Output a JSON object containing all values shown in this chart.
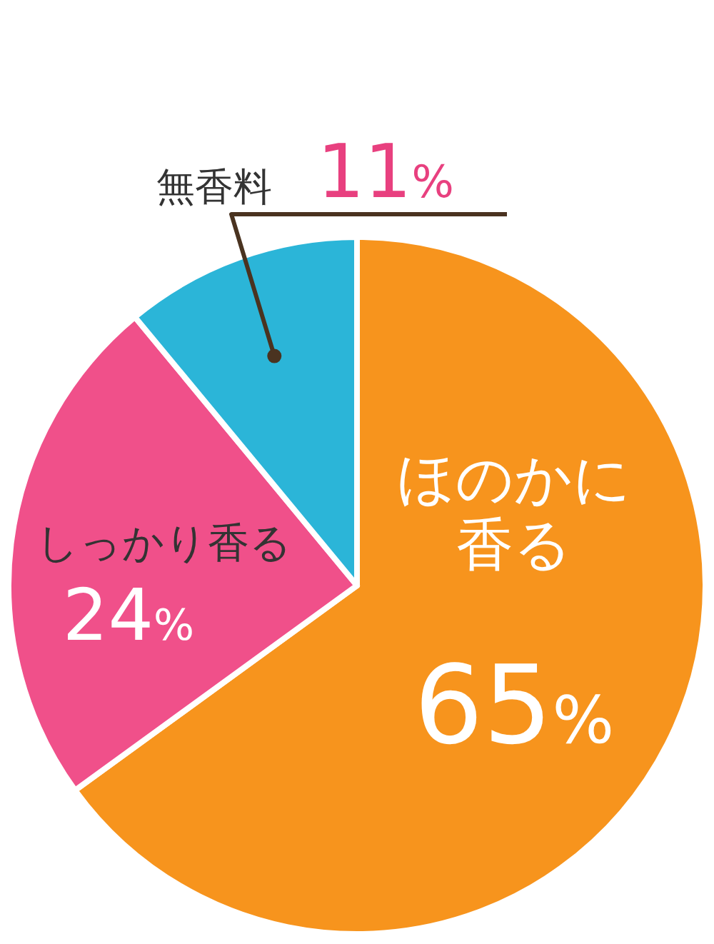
{
  "chart_data": {
    "type": "pie",
    "categories": [
      "ほのかに香る",
      "しっかり香る",
      "無香料"
    ],
    "values": [
      65,
      24,
      11
    ],
    "colors": [
      "#f7941d",
      "#f0508a",
      "#2bb5d8"
    ],
    "value_labels": [
      "65%",
      "24%",
      "11%"
    ]
  }
}
